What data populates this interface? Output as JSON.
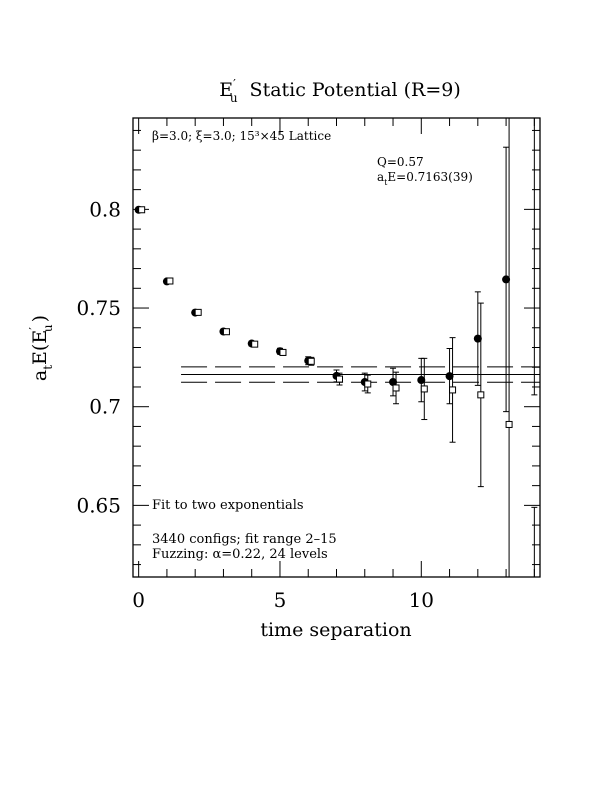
{
  "chart_data": {
    "type": "scatter",
    "title_main": "E",
    "title_prime": "′",
    "title_sub": "u",
    "title_rest": "Static Potential (R=9)",
    "xlabel": "time separation",
    "ylabel": {
      "prefix": "a",
      "prefix_sub": "t",
      "main": "E(E",
      "prime": "′",
      "sub": "u",
      "close": ")"
    },
    "xlim": [
      -0.2,
      14.2
    ],
    "ylim": [
      0.6137,
      0.8463
    ],
    "xticks": [
      0,
      5,
      10
    ],
    "yticks": [
      0.65,
      0.7,
      0.75,
      0.8
    ],
    "annotations": {
      "lattice": "β=3.0; ξ=3.0; 15³×45 Lattice",
      "q": "Q=0.57",
      "ate_prefix": "a",
      "ate_sub": "t",
      "ate_rest": "E=0.7163(39)",
      "fit": "Fit to two exponentials",
      "configs": "3440 configs; fit range 2–15",
      "fuzzing": "Fuzzing: α=0.22, 24 levels"
    },
    "fit": {
      "value": 0.7163,
      "error": 0.0039,
      "x_range": [
        1.5,
        14.2
      ]
    },
    "series": [
      {
        "marker": "filled-circle",
        "points": [
          {
            "x": 0,
            "y": 0.7998,
            "err": 0.0004
          },
          {
            "x": 1,
            "y": 0.7635,
            "err": 0.0006
          },
          {
            "x": 2,
            "y": 0.7477,
            "err": 0.0008
          },
          {
            "x": 3,
            "y": 0.7381,
            "err": 0.001
          },
          {
            "x": 4,
            "y": 0.732,
            "err": 0.0012
          },
          {
            "x": 5,
            "y": 0.7281,
            "err": 0.0015
          },
          {
            "x": 6,
            "y": 0.7233,
            "err": 0.002
          },
          {
            "x": 7,
            "y": 0.7156,
            "err": 0.003
          },
          {
            "x": 8,
            "y": 0.7125,
            "err": 0.0045
          },
          {
            "x": 9,
            "y": 0.7125,
            "err": 0.007
          },
          {
            "x": 10,
            "y": 0.7135,
            "err": 0.011
          },
          {
            "x": 11,
            "y": 0.7155,
            "err": 0.014
          },
          {
            "x": 12,
            "y": 0.7345,
            "err": 0.0237
          },
          {
            "x": 13,
            "y": 0.7645,
            "err": 0.067
          }
        ]
      },
      {
        "marker": "open-square",
        "points": [
          {
            "x": 0,
            "y": 0.7998,
            "err": 0.0004
          },
          {
            "x": 1,
            "y": 0.7637,
            "err": 0.0006
          },
          {
            "x": 2,
            "y": 0.7478,
            "err": 0.0008
          },
          {
            "x": 3,
            "y": 0.738,
            "err": 0.001
          },
          {
            "x": 4,
            "y": 0.7317,
            "err": 0.0012
          },
          {
            "x": 5,
            "y": 0.7275,
            "err": 0.0015
          },
          {
            "x": 6,
            "y": 0.723,
            "err": 0.002
          },
          {
            "x": 7,
            "y": 0.714,
            "err": 0.003
          },
          {
            "x": 8,
            "y": 0.7115,
            "err": 0.0045
          },
          {
            "x": 9,
            "y": 0.7095,
            "err": 0.008
          },
          {
            "x": 10,
            "y": 0.709,
            "err": 0.0155
          },
          {
            "x": 11,
            "y": 0.7085,
            "err": 0.0265
          },
          {
            "x": 12,
            "y": 0.706,
            "err": 0.0465
          },
          {
            "x": 13,
            "y": 0.691,
            "err": 0.17
          }
        ]
      },
      {
        "marker": "none",
        "points": [
          {
            "x": 14,
            "y": 0.629,
            "err": 0.02
          },
          {
            "x": 14,
            "y": 0.778,
            "err": 0.072
          }
        ]
      }
    ]
  }
}
